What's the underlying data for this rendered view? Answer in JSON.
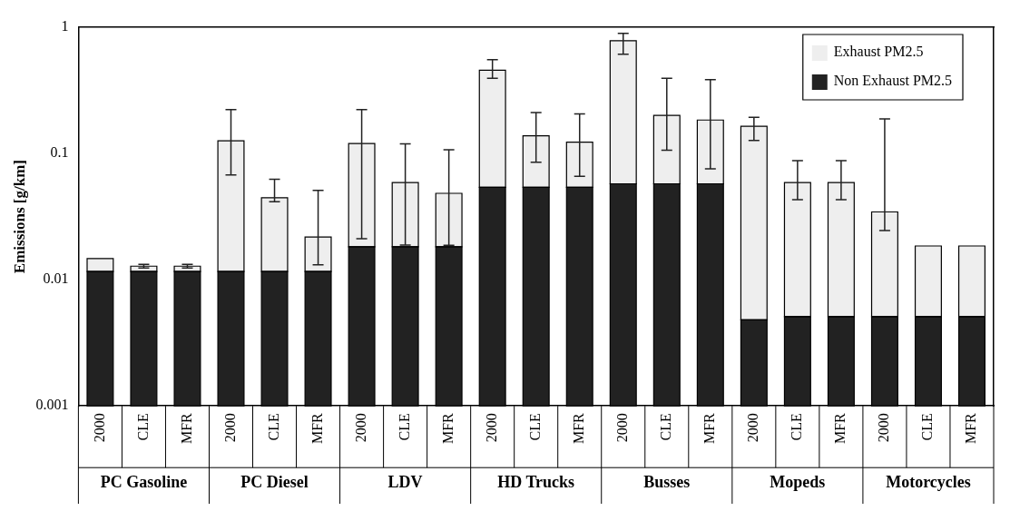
{
  "chart_data": {
    "type": "bar",
    "stacked": true,
    "log": true,
    "ylabel": "Emissions [g/km]",
    "categories": [
      "2000",
      "CLE",
      "MFR",
      "2000",
      "CLE",
      "MFR",
      "2000",
      "CLE",
      "MFR",
      "2000",
      "CLE",
      "MFR",
      "2000",
      "CLE",
      "MFR",
      "2000",
      "CLE",
      "MFR",
      "2000",
      "CLE",
      "MFR"
    ],
    "series": [
      {
        "name": "Non Exhaust PM2.5",
        "color": "#222222",
        "values": [
          0.0116,
          0.0116,
          0.0116,
          0.0116,
          0.0116,
          0.0116,
          0.0182,
          0.0182,
          0.0182,
          0.0539,
          0.0539,
          0.0539,
          0.0575,
          0.0575,
          0.0575,
          0.0048,
          0.0051,
          0.0051,
          0.0051,
          0.0051,
          0.0051
        ]
      },
      {
        "name": "Exhaust PM2.5",
        "color": "#eeeeee",
        "values": [
          0.0031,
          0.0012,
          0.0012,
          0.1144,
          0.0329,
          0.0102,
          0.1018,
          0.0406,
          0.0301,
          0.4031,
          0.0841,
          0.0691,
          0.7245,
          0.1425,
          0.1265,
          0.1592,
          0.0537,
          0.0537,
          0.0293,
          0.0134,
          0.0134
        ],
        "errors": [
          null,
          [
            0.0124,
            0.0132
          ],
          [
            0.0124,
            0.0132
          ],
          [
            0.0675,
            0.223
          ],
          [
            0.0414,
            0.0625
          ],
          [
            0.0131,
            0.051
          ],
          [
            0.0211,
            0.223
          ],
          [
            0.0188,
            0.119
          ],
          [
            0.0187,
            0.107
          ],
          [
            0.394,
            0.554
          ],
          [
            0.0853,
            0.211
          ],
          [
            0.066,
            0.206
          ],
          [
            0.611,
            0.896
          ],
          [
            0.106,
            0.394
          ],
          [
            0.0757,
            0.384
          ],
          [
            0.127,
            0.193
          ],
          [
            0.043,
            0.0877
          ],
          [
            0.043,
            0.0877
          ],
          [
            0.0245,
            0.188
          ],
          null,
          null
        ]
      }
    ],
    "ylim": [
      0.001,
      1
    ],
    "yticks": [
      0.001,
      0.01,
      0.1,
      1
    ],
    "grid": false,
    "legend": "top right",
    "annotations": [
      "PC Gasoline",
      "PC Diesel",
      "LDV",
      "HD Trucks",
      "Busses",
      "Mopeds",
      "Motorcycles"
    ]
  }
}
